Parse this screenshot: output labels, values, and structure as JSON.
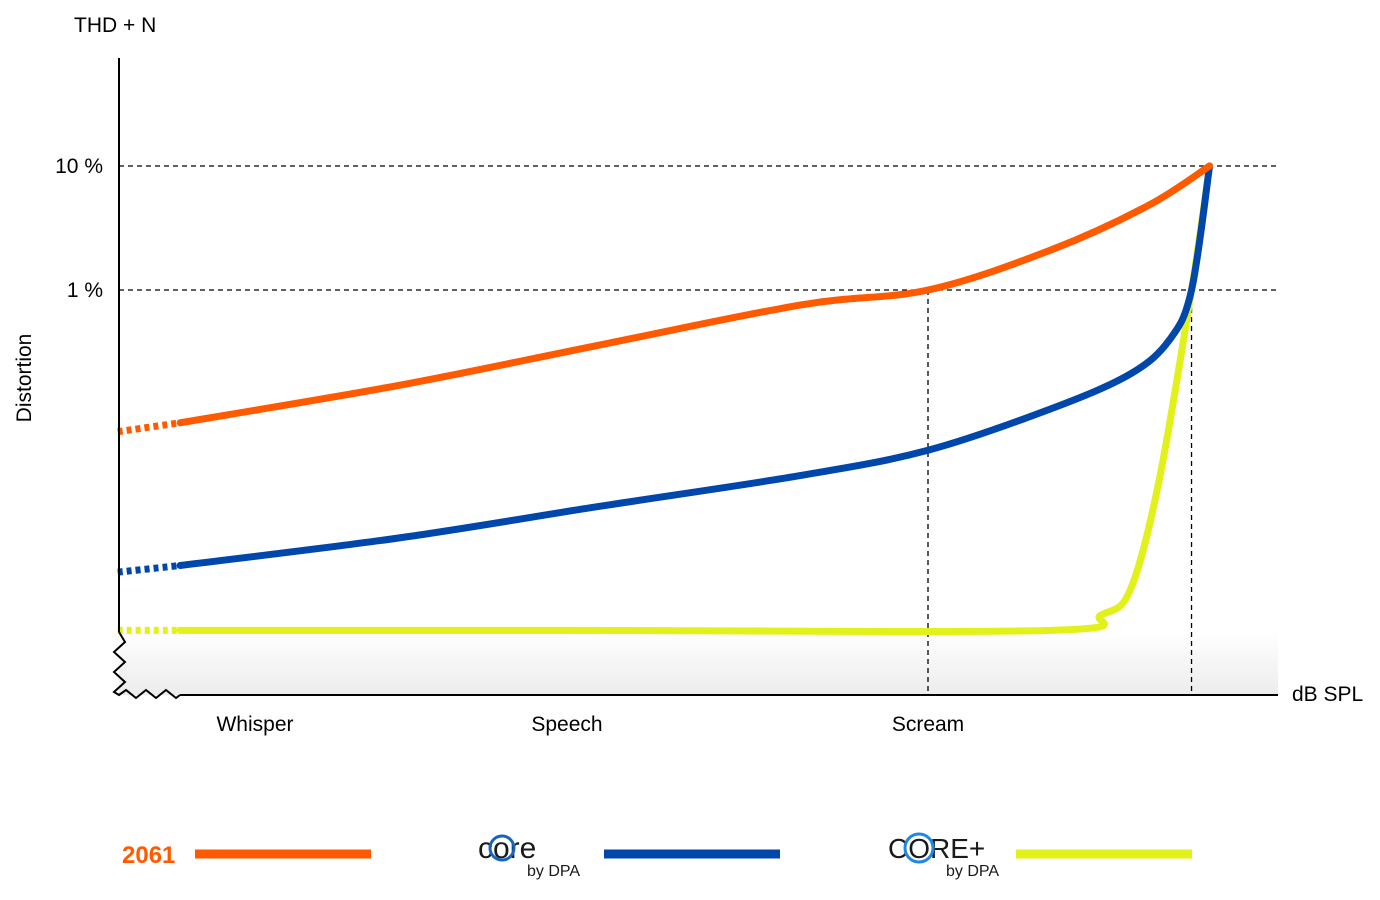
{
  "chart_data": {
    "type": "line",
    "title": "",
    "ylabel": "Distortion",
    "ylabel_top": "THD + N",
    "xlabel": "dB SPL",
    "y_scale": "log",
    "ylim": [
      0.0005,
      75
    ],
    "xlim": [
      0.56,
      3.97
    ],
    "y_ticks": [
      {
        "value": 10,
        "label": "10 %"
      },
      {
        "value": 1,
        "label": "1 %"
      }
    ],
    "x_ticks": [
      {
        "value": 1,
        "label": "Whisper"
      },
      {
        "value": 2,
        "label": "Speech"
      },
      {
        "value": 3,
        "label": "Scream"
      }
    ],
    "grid": "dashed reference lines at 10 % and 1 %",
    "reference_lines": [
      {
        "axis": "y",
        "value": 10
      },
      {
        "axis": "y",
        "value": 1
      },
      {
        "axis": "x",
        "value": 3,
        "to_y": 1
      },
      {
        "axis": "x",
        "value": 3.73,
        "to_y": 1
      }
    ],
    "dotted_until_x": 0.76,
    "legend_placement": "bottom",
    "series": [
      {
        "name": "2061",
        "color": "#ff5a00",
        "points": [
          [
            0.56,
            0.072
          ],
          [
            0.76,
            0.085
          ],
          [
            1.46,
            0.17
          ],
          [
            2.09,
            0.36
          ],
          [
            2.65,
            0.76
          ],
          [
            3.0,
            1.0
          ],
          [
            3.34,
            2.1
          ],
          [
            3.61,
            4.8
          ],
          [
            3.78,
            10
          ]
        ]
      },
      {
        "name": "core by DPA",
        "color": "#0047ab",
        "points": [
          [
            0.56,
            0.0053
          ],
          [
            0.76,
            0.006
          ],
          [
            1.46,
            0.01
          ],
          [
            2.09,
            0.018
          ],
          [
            2.65,
            0.032
          ],
          [
            3.0,
            0.051
          ],
          [
            3.34,
            0.11
          ],
          [
            3.56,
            0.21
          ],
          [
            3.67,
            0.4
          ],
          [
            3.73,
            1.0
          ],
          [
            3.78,
            10
          ]
        ]
      },
      {
        "name": "CORE+ by DPA",
        "color": "#e2f11a",
        "points": [
          [
            0.56,
            0.0018
          ],
          [
            0.76,
            0.0018
          ],
          [
            2.0,
            0.0018
          ],
          [
            3.34,
            0.0018
          ],
          [
            3.48,
            0.0024
          ],
          [
            3.56,
            0.0038
          ],
          [
            3.64,
            0.029
          ],
          [
            3.73,
            1.0
          ],
          [
            3.78,
            10
          ]
        ]
      }
    ]
  },
  "legend": {
    "item1": "2061",
    "item2_logo": "core",
    "item2_sub": "by DPA",
    "item3_logo": "CORE+",
    "item3_sub": "by DPA"
  }
}
